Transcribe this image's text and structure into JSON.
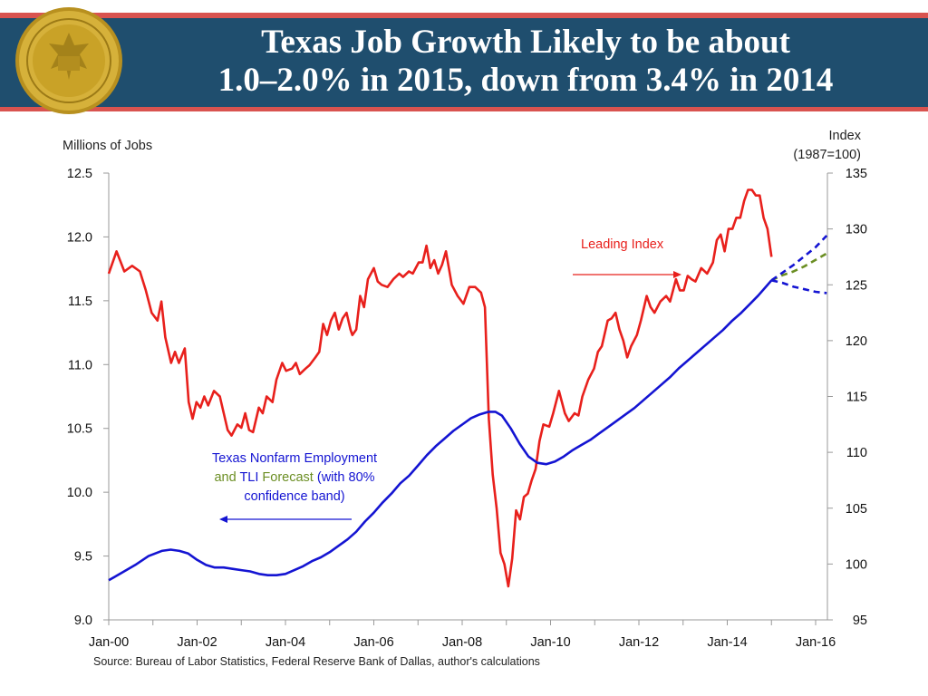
{
  "header": {
    "title_line1": "Texas Job Growth Likely to be about",
    "title_line2": "1.0–2.0% in 2015, down from 3.4% in 2014",
    "seal_name": "federal-reserve-bank-of-dallas-seal",
    "colors": {
      "band": "#1f4e6e",
      "stripe": "#d9534f",
      "seal": "#c9a227"
    }
  },
  "chart_data": {
    "type": "line",
    "left_axis": {
      "label": "Millions of Jobs",
      "ylim": [
        9.0,
        12.5
      ],
      "ticks": [
        "9.0",
        "9.5",
        "10.0",
        "10.5",
        "11.0",
        "11.5",
        "12.0",
        "12.5"
      ]
    },
    "right_axis": {
      "label_line1": "Index",
      "label_line2": "(1987=100)",
      "ylim": [
        95,
        135
      ],
      "ticks": [
        "95",
        "100",
        "105",
        "110",
        "115",
        "120",
        "125",
        "130",
        "135"
      ]
    },
    "x_ticks": [
      "Jan-00",
      "Jan-02",
      "Jan-04",
      "Jan-06",
      "Jan-08",
      "Jan-10",
      "Jan-12",
      "Jan-14",
      "Jan-16"
    ],
    "x_tick_years": [
      2000,
      2002,
      2004,
      2006,
      2008,
      2010,
      2012,
      2014,
      2016
    ],
    "xlim": [
      2000,
      2016.25
    ],
    "grid": false,
    "series": [
      {
        "name": "Leading Index",
        "axis": "right",
        "color": "#e8201c",
        "style": "solid",
        "points": [
          [
            2000.0,
            126.0
          ],
          [
            2000.2,
            128.0
          ],
          [
            2000.4,
            126.2
          ],
          [
            2000.6,
            126.7
          ],
          [
            2000.8,
            126.2
          ],
          [
            2000.95,
            124.5
          ],
          [
            2001.1,
            122.5
          ],
          [
            2001.25,
            121.8
          ],
          [
            2001.35,
            123.5
          ],
          [
            2001.45,
            120.3
          ],
          [
            2001.6,
            118.0
          ],
          [
            2001.7,
            119.0
          ],
          [
            2001.8,
            118.0
          ],
          [
            2001.95,
            119.3
          ],
          [
            2002.05,
            114.5
          ],
          [
            2002.15,
            113.0
          ],
          [
            2002.25,
            114.5
          ],
          [
            2002.35,
            114.0
          ],
          [
            2002.45,
            115.0
          ],
          [
            2002.55,
            114.2
          ],
          [
            2002.7,
            115.5
          ],
          [
            2002.85,
            115.0
          ],
          [
            2002.95,
            113.5
          ],
          [
            2003.05,
            112.0
          ],
          [
            2003.15,
            111.5
          ],
          [
            2003.3,
            112.5
          ],
          [
            2003.4,
            112.2
          ],
          [
            2003.5,
            113.5
          ],
          [
            2003.6,
            112.0
          ],
          [
            2003.7,
            111.8
          ],
          [
            2003.85,
            114.0
          ],
          [
            2003.95,
            113.5
          ],
          [
            2004.05,
            115.0
          ],
          [
            2004.2,
            114.5
          ],
          [
            2004.3,
            116.5
          ],
          [
            2004.45,
            118.0
          ],
          [
            2004.55,
            117.3
          ],
          [
            2004.7,
            117.5
          ],
          [
            2004.8,
            118.0
          ],
          [
            2004.9,
            117.0
          ],
          [
            2005.05,
            117.5
          ],
          [
            2005.15,
            117.8
          ],
          [
            2005.3,
            118.5
          ],
          [
            2005.4,
            119.0
          ],
          [
            2005.5,
            121.5
          ],
          [
            2005.6,
            120.5
          ],
          [
            2005.7,
            121.8
          ],
          [
            2005.8,
            122.5
          ],
          [
            2005.9,
            121.0
          ],
          [
            2006.0,
            122.0
          ],
          [
            2006.1,
            122.5
          ],
          [
            2006.2,
            121.0
          ],
          [
            2006.25,
            120.5
          ],
          [
            2006.35,
            121.0
          ],
          [
            2006.45,
            124.0
          ],
          [
            2006.55,
            123.0
          ],
          [
            2006.65,
            125.5
          ],
          [
            2006.8,
            126.5
          ],
          [
            2006.9,
            125.3
          ],
          [
            2007.0,
            125.0
          ],
          [
            2007.15,
            124.8
          ],
          [
            2007.3,
            125.5
          ],
          [
            2007.45,
            126.0
          ],
          [
            2007.55,
            125.7
          ],
          [
            2007.7,
            126.2
          ],
          [
            2007.8,
            126.0
          ],
          [
            2007.95,
            127.0
          ],
          [
            2008.05,
            127.0
          ],
          [
            2008.15,
            128.5
          ],
          [
            2008.25,
            126.5
          ],
          [
            2008.35,
            127.2
          ],
          [
            2008.45,
            126.0
          ],
          [
            2008.55,
            126.8
          ],
          [
            2008.65,
            128.0
          ],
          [
            2008.8,
            125.0
          ],
          [
            2008.95,
            124.0
          ],
          [
            2009.1,
            123.3
          ],
          [
            2009.25,
            124.8
          ],
          [
            2009.4,
            124.8
          ],
          [
            2009.55,
            124.3
          ],
          [
            2009.65,
            123.0
          ],
          [
            2009.75,
            113.0
          ],
          [
            2009.85,
            108.0
          ],
          [
            2009.95,
            105.0
          ],
          [
            2010.05,
            101.0
          ],
          [
            2010.15,
            100.0
          ],
          [
            2010.25,
            98.0
          ],
          [
            2010.35,
            100.5
          ],
          [
            2010.45,
            104.8
          ],
          [
            2010.55,
            104.0
          ],
          [
            2010.65,
            106.0
          ],
          [
            2010.75,
            106.3
          ],
          [
            2010.85,
            107.5
          ],
          [
            2010.95,
            108.5
          ],
          [
            2011.05,
            111.0
          ],
          [
            2011.15,
            112.5
          ],
          [
            2011.3,
            112.3
          ],
          [
            2011.4,
            113.5
          ],
          [
            2011.55,
            115.5
          ],
          [
            2011.7,
            113.5
          ],
          [
            2011.8,
            112.8
          ],
          [
            2011.95,
            113.5
          ],
          [
            2012.05,
            113.3
          ],
          [
            2012.15,
            115.0
          ],
          [
            2012.3,
            116.5
          ],
          [
            2012.45,
            117.5
          ],
          [
            2012.55,
            119.0
          ],
          [
            2012.65,
            119.5
          ],
          [
            2012.8,
            121.8
          ],
          [
            2012.9,
            122.0
          ],
          [
            2013.0,
            122.5
          ],
          [
            2013.1,
            121.0
          ],
          [
            2013.2,
            120.0
          ],
          [
            2013.3,
            118.5
          ],
          [
            2013.4,
            119.5
          ],
          [
            2013.55,
            120.5
          ],
          [
            2013.65,
            121.8
          ],
          [
            2013.8,
            124.0
          ],
          [
            2013.9,
            123.0
          ],
          [
            2014.0,
            122.5
          ],
          [
            2014.15,
            123.5
          ],
          [
            2014.3,
            124.0
          ],
          [
            2014.4,
            123.5
          ],
          [
            2014.55,
            125.5
          ],
          [
            2014.65,
            124.5
          ],
          [
            2014.75,
            124.5
          ],
          [
            2014.85,
            125.8
          ],
          [
            2014.95,
            125.5
          ],
          [
            2015.05,
            125.3
          ],
          [
            2015.2,
            126.5
          ],
          [
            2015.35,
            126.0
          ],
          [
            2015.5,
            127.0
          ],
          [
            2015.6,
            129.0
          ],
          [
            2015.7,
            129.5
          ],
          [
            2015.8,
            128.0
          ],
          [
            2015.9,
            130.0
          ],
          [
            2016.0,
            130.0
          ],
          [
            2016.1,
            131.0
          ],
          [
            2016.2,
            131.0
          ],
          [
            2016.3,
            132.5
          ],
          [
            2016.4,
            133.5
          ],
          [
            2016.5,
            133.5
          ],
          [
            2016.6,
            133.0
          ],
          [
            2016.7,
            133.0
          ],
          [
            2016.8,
            131.0
          ],
          [
            2016.9,
            130.0
          ],
          [
            2017.0,
            127.5
          ]
        ]
      },
      {
        "name": "Texas Nonfarm Employment",
        "axis": "left",
        "color": "#1414d2",
        "style": "solid",
        "points": [
          [
            2000.0,
            9.31
          ],
          [
            2000.3,
            9.37
          ],
          [
            2000.6,
            9.43
          ],
          [
            2000.9,
            9.5
          ],
          [
            2001.2,
            9.54
          ],
          [
            2001.4,
            9.55
          ],
          [
            2001.6,
            9.54
          ],
          [
            2001.8,
            9.52
          ],
          [
            2002.0,
            9.47
          ],
          [
            2002.2,
            9.43
          ],
          [
            2002.4,
            9.41
          ],
          [
            2002.6,
            9.41
          ],
          [
            2002.8,
            9.4
          ],
          [
            2003.0,
            9.39
          ],
          [
            2003.2,
            9.38
          ],
          [
            2003.4,
            9.36
          ],
          [
            2003.6,
            9.35
          ],
          [
            2003.8,
            9.35
          ],
          [
            2004.0,
            9.36
          ],
          [
            2004.2,
            9.39
          ],
          [
            2004.4,
            9.42
          ],
          [
            2004.6,
            9.46
          ],
          [
            2004.8,
            9.49
          ],
          [
            2005.0,
            9.53
          ],
          [
            2005.2,
            9.58
          ],
          [
            2005.4,
            9.63
          ],
          [
            2005.6,
            9.69
          ],
          [
            2005.8,
            9.77
          ],
          [
            2006.0,
            9.84
          ],
          [
            2006.2,
            9.92
          ],
          [
            2006.4,
            9.99
          ],
          [
            2006.6,
            10.07
          ],
          [
            2006.8,
            10.13
          ],
          [
            2007.0,
            10.21
          ],
          [
            2007.2,
            10.29
          ],
          [
            2007.4,
            10.36
          ],
          [
            2007.6,
            10.42
          ],
          [
            2007.8,
            10.48
          ],
          [
            2008.0,
            10.53
          ],
          [
            2008.2,
            10.58
          ],
          [
            2008.4,
            10.61
          ],
          [
            2008.6,
            10.63
          ],
          [
            2008.75,
            10.63
          ],
          [
            2008.9,
            10.6
          ],
          [
            2009.1,
            10.5
          ],
          [
            2009.3,
            10.38
          ],
          [
            2009.5,
            10.28
          ],
          [
            2009.7,
            10.23
          ],
          [
            2009.9,
            10.22
          ],
          [
            2010.1,
            10.24
          ],
          [
            2010.3,
            10.28
          ],
          [
            2010.5,
            10.33
          ],
          [
            2010.7,
            10.37
          ],
          [
            2010.9,
            10.41
          ],
          [
            2011.1,
            10.46
          ],
          [
            2011.3,
            10.51
          ],
          [
            2011.5,
            10.56
          ],
          [
            2011.7,
            10.61
          ],
          [
            2011.9,
            10.66
          ],
          [
            2012.1,
            10.72
          ],
          [
            2012.3,
            10.78
          ],
          [
            2012.5,
            10.84
          ],
          [
            2012.7,
            10.9
          ],
          [
            2012.9,
            10.97
          ],
          [
            2013.1,
            11.03
          ],
          [
            2013.3,
            11.09
          ],
          [
            2013.5,
            11.15
          ],
          [
            2013.7,
            11.21
          ],
          [
            2013.9,
            11.27
          ],
          [
            2014.1,
            11.34
          ],
          [
            2014.3,
            11.4
          ],
          [
            2014.5,
            11.47
          ],
          [
            2014.7,
            11.54
          ],
          [
            2014.9,
            11.62
          ],
          [
            2015.0,
            11.66
          ]
        ]
      },
      {
        "name": "TLI Forecast",
        "axis": "left",
        "color": "#6b8e23",
        "style": "dashed",
        "points": [
          [
            2015.0,
            11.66
          ],
          [
            2015.25,
            11.7
          ],
          [
            2015.5,
            11.73
          ],
          [
            2015.75,
            11.77
          ],
          [
            2016.0,
            11.82
          ],
          [
            2016.25,
            11.87
          ]
        ]
      },
      {
        "name": "80% confidence band upper",
        "axis": "left",
        "color": "#1414d2",
        "style": "dashed",
        "points": [
          [
            2015.0,
            11.66
          ],
          [
            2015.25,
            11.72
          ],
          [
            2015.5,
            11.78
          ],
          [
            2015.75,
            11.85
          ],
          [
            2016.0,
            11.92
          ],
          [
            2016.25,
            12.01
          ]
        ]
      },
      {
        "name": "80% confidence band lower",
        "axis": "left",
        "color": "#1414d2",
        "style": "dashed",
        "points": [
          [
            2015.0,
            11.66
          ],
          [
            2015.25,
            11.64
          ],
          [
            2015.5,
            11.61
          ],
          [
            2015.75,
            11.59
          ],
          [
            2016.0,
            11.57
          ],
          [
            2016.25,
            11.56
          ]
        ]
      }
    ],
    "annotations": {
      "leading_index": "Leading Index",
      "employment_line1": "Texas Nonfarm Employment",
      "employment_line2_and": "and",
      "employment_line2_tli": "TLI",
      "employment_line2_forecast": "Forecast",
      "employment_line2_rest": "(with 80%",
      "employment_line3": "confidence band)"
    },
    "source": "Source: Bureau of Labor Statistics, Federal Reserve Bank of Dallas, author's calculations"
  }
}
